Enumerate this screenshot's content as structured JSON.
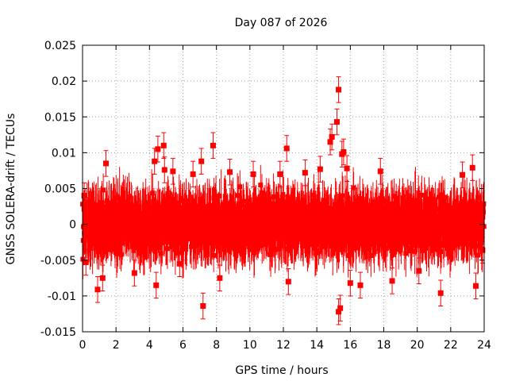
{
  "chart_data": {
    "type": "scatter",
    "title": "Day 087 of 2026",
    "xlabel": "GPS time / hours",
    "ylabel": "GNSS SOLERA-drift / TECUs",
    "xlim": [
      0,
      24
    ],
    "ylim": [
      -0.015,
      0.025
    ],
    "x_ticks": [
      0,
      2,
      4,
      6,
      8,
      10,
      12,
      14,
      16,
      18,
      20,
      22,
      24
    ],
    "x_tick_labels": [
      "0",
      "2",
      "4",
      "6",
      "8",
      "10",
      "12",
      "14",
      "16",
      "18",
      "20",
      "22",
      "24"
    ],
    "y_ticks": [
      -0.015,
      -0.01,
      -0.005,
      0,
      0.005,
      0.01,
      0.015,
      0.02,
      0.025
    ],
    "y_tick_labels": [
      "-0.015",
      "-0.01",
      "-0.005",
      "0",
      "0.005",
      "0.01",
      "0.015",
      "0.02",
      "0.025"
    ],
    "grid": true,
    "series": [
      {
        "name": "SOLERA drift",
        "color": "#ff0000",
        "marker": "square",
        "error_bars": true,
        "bulk_summary": "dense cloud of points every ~30 s over 0–24 h, values mostly within ±0.005 TECU, each with error bars of about ±0.002–0.003 TECU",
        "bulk_range": [
          -0.006,
          0.006
        ],
        "outliers": [
          {
            "x": 0.1,
            "y": 0.004
          },
          {
            "x": 0.2,
            "y": -0.0053
          },
          {
            "x": 0.9,
            "y": -0.0091
          },
          {
            "x": 1.2,
            "y": -0.0075
          },
          {
            "x": 1.4,
            "y": 0.0085
          },
          {
            "x": 3.1,
            "y": -0.0068
          },
          {
            "x": 4.3,
            "y": 0.0088
          },
          {
            "x": 4.4,
            "y": -0.0085
          },
          {
            "x": 4.5,
            "y": 0.0105
          },
          {
            "x": 4.85,
            "y": 0.011
          },
          {
            "x": 4.9,
            "y": 0.0076
          },
          {
            "x": 5.4,
            "y": 0.0074
          },
          {
            "x": 5.8,
            "y": -0.0055
          },
          {
            "x": 6.6,
            "y": 0.007
          },
          {
            "x": 7.1,
            "y": 0.0088
          },
          {
            "x": 7.2,
            "y": -0.0114
          },
          {
            "x": 7.8,
            "y": 0.011
          },
          {
            "x": 8.2,
            "y": -0.0075
          },
          {
            "x": 8.8,
            "y": 0.0073
          },
          {
            "x": 10.2,
            "y": 0.007
          },
          {
            "x": 11.8,
            "y": 0.007
          },
          {
            "x": 12.2,
            "y": 0.0106
          },
          {
            "x": 12.3,
            "y": -0.008
          },
          {
            "x": 13.3,
            "y": 0.0072
          },
          {
            "x": 14.2,
            "y": 0.0077
          },
          {
            "x": 14.8,
            "y": 0.0115
          },
          {
            "x": 14.9,
            "y": 0.0122
          },
          {
            "x": 15.2,
            "y": 0.0143
          },
          {
            "x": 15.3,
            "y": 0.0188
          },
          {
            "x": 15.3,
            "y": -0.0122
          },
          {
            "x": 15.4,
            "y": -0.0117
          },
          {
            "x": 15.5,
            "y": 0.0098
          },
          {
            "x": 15.6,
            "y": 0.0101
          },
          {
            "x": 15.8,
            "y": 0.0078
          },
          {
            "x": 16.0,
            "y": -0.0082
          },
          {
            "x": 16.6,
            "y": -0.0085
          },
          {
            "x": 17.8,
            "y": 0.0074
          },
          {
            "x": 18.5,
            "y": -0.0079
          },
          {
            "x": 20.1,
            "y": -0.0065
          },
          {
            "x": 21.4,
            "y": -0.0096
          },
          {
            "x": 22.7,
            "y": 0.0069
          },
          {
            "x": 23.3,
            "y": 0.0079
          },
          {
            "x": 23.5,
            "y": -0.0086
          },
          {
            "x": 23.9,
            "y": -0.0036
          }
        ]
      }
    ]
  }
}
